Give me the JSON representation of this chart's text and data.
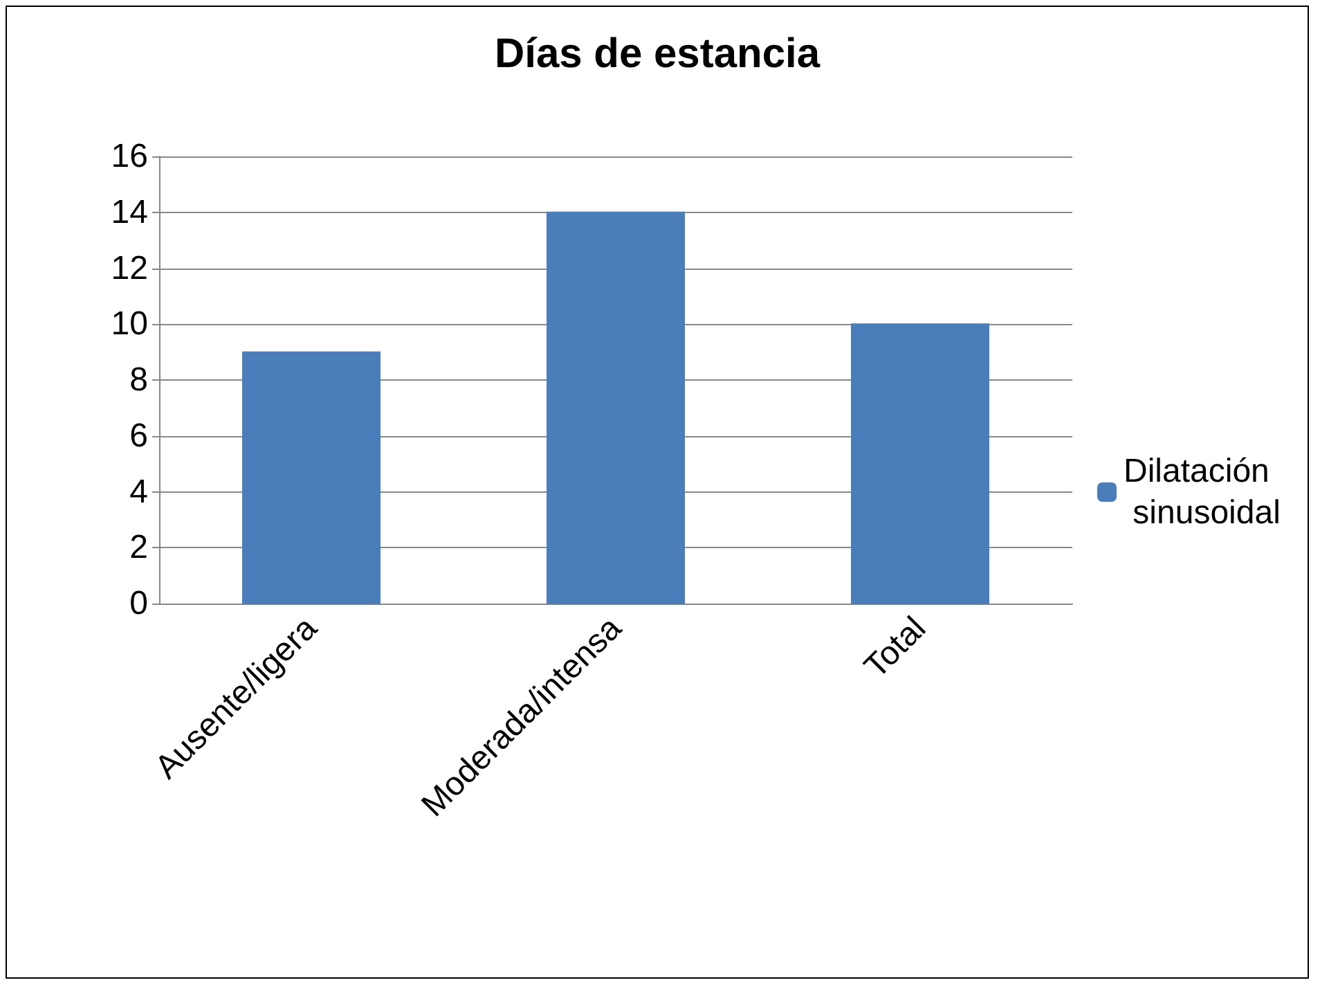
{
  "chart_data": {
    "type": "bar",
    "title": "Días de estancia",
    "categories": [
      "Ausente/ligera",
      "Moderada/intensa",
      "Total"
    ],
    "series": [
      {
        "name": "Dilatación sinusoidal",
        "color": "#4a7ebb",
        "values": [
          9,
          14,
          10
        ]
      }
    ],
    "ylim": [
      0,
      16
    ],
    "yticks": [
      0,
      2,
      4,
      6,
      8,
      10,
      12,
      14,
      16
    ],
    "grid": "y",
    "legend": "right"
  }
}
